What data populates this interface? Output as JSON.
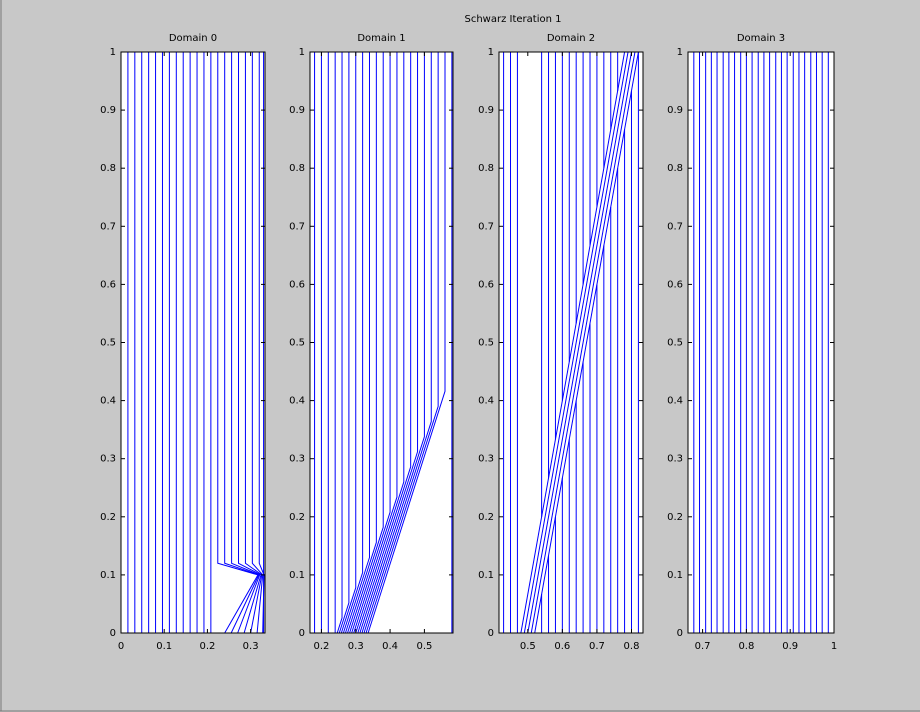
{
  "title": "Schwarz Iteration 1",
  "chart_data": [
    {
      "type": "line",
      "title": "Domain 0",
      "color": "#0000ff",
      "xlim": [
        0,
        0.3333
      ],
      "ylim": [
        0,
        1
      ],
      "xticks": [
        0,
        0.1,
        0.2,
        0.3
      ],
      "yticks": [
        0,
        0.1,
        0.2,
        0.3,
        0.4,
        0.5,
        0.6,
        0.7,
        0.8,
        0.9,
        1
      ],
      "series": [
        {
          "y": [
            0,
            1
          ],
          "values": [
            0.016,
            0.016
          ]
        },
        {
          "y": [
            0,
            1
          ],
          "values": [
            0.032,
            0.032
          ]
        },
        {
          "y": [
            0,
            1
          ],
          "values": [
            0.048,
            0.048
          ]
        },
        {
          "y": [
            0,
            1
          ],
          "values": [
            0.064,
            0.064
          ]
        },
        {
          "y": [
            0,
            1
          ],
          "values": [
            0.08,
            0.08
          ]
        },
        {
          "y": [
            0,
            1
          ],
          "values": [
            0.096,
            0.096
          ]
        },
        {
          "y": [
            0,
            1
          ],
          "values": [
            0.112,
            0.112
          ]
        },
        {
          "y": [
            0,
            1
          ],
          "values": [
            0.128,
            0.128
          ]
        },
        {
          "y": [
            0,
            1
          ],
          "values": [
            0.144,
            0.144
          ]
        },
        {
          "y": [
            0,
            1
          ],
          "values": [
            0.16,
            0.16
          ]
        },
        {
          "y": [
            0,
            1
          ],
          "values": [
            0.176,
            0.176
          ]
        },
        {
          "y": [
            0,
            1
          ],
          "values": [
            0.192,
            0.192
          ]
        },
        {
          "y": [
            0,
            1
          ],
          "values": [
            0.208,
            0.208
          ]
        },
        {
          "y": [
            0,
            0.1,
            0.12,
            1
          ],
          "values": [
            0.24,
            0.317,
            0.224,
            0.224
          ]
        },
        {
          "y": [
            0,
            0.1,
            0.12,
            1
          ],
          "values": [
            0.255,
            0.319,
            0.24,
            0.24
          ]
        },
        {
          "y": [
            0,
            0.1,
            0.12,
            1
          ],
          "values": [
            0.27,
            0.321,
            0.256,
            0.256
          ]
        },
        {
          "y": [
            0,
            0.1,
            0.12,
            1
          ],
          "values": [
            0.285,
            0.324,
            0.272,
            0.272
          ]
        },
        {
          "y": [
            0,
            0.1,
            0.12,
            1
          ],
          "values": [
            0.3,
            0.326,
            0.288,
            0.288
          ]
        },
        {
          "y": [
            0,
            0.1,
            0.12,
            1
          ],
          "values": [
            0.315,
            0.328,
            0.304,
            0.304
          ]
        },
        {
          "y": [
            0,
            0.1,
            0.12,
            1
          ],
          "values": [
            0.328,
            0.331,
            0.32,
            0.32
          ]
        },
        {
          "y": [
            0,
            1
          ],
          "values": [
            0.33,
            0.33
          ]
        }
      ]
    },
    {
      "type": "line",
      "title": "Domain 1",
      "color": "#0000ff",
      "xlim": [
        0.1667,
        0.5833
      ],
      "ylim": [
        0,
        1
      ],
      "xticks": [
        0.2,
        0.3,
        0.4,
        0.5
      ],
      "yticks": [
        0,
        0.1,
        0.2,
        0.3,
        0.4,
        0.5,
        0.6,
        0.7,
        0.8,
        0.9,
        1
      ],
      "series": [
        {
          "y": [
            0,
            1
          ],
          "values": [
            0.18,
            0.18
          ]
        },
        {
          "y": [
            0,
            1
          ],
          "values": [
            0.2,
            0.2
          ]
        },
        {
          "y": [
            0,
            1
          ],
          "values": [
            0.22,
            0.22
          ]
        },
        {
          "y": [
            0,
            1
          ],
          "values": [
            0.24,
            0.24
          ]
        },
        {
          "y": [
            0,
            0.026,
            1
          ],
          "values": [
            0.246,
            0.26,
            0.26
          ]
        },
        {
          "y": [
            0,
            0.052,
            1
          ],
          "values": [
            0.252,
            0.28,
            0.28
          ]
        },
        {
          "y": [
            0,
            0.078,
            1
          ],
          "values": [
            0.258,
            0.3,
            0.3
          ]
        },
        {
          "y": [
            0,
            0.104,
            1
          ],
          "values": [
            0.264,
            0.32,
            0.32
          ]
        },
        {
          "y": [
            0,
            0.13,
            1
          ],
          "values": [
            0.27,
            0.34,
            0.34
          ]
        },
        {
          "y": [
            0,
            0.156,
            1
          ],
          "values": [
            0.276,
            0.36,
            0.36
          ]
        },
        {
          "y": [
            0,
            0.182,
            1
          ],
          "values": [
            0.282,
            0.38,
            0.38
          ]
        },
        {
          "y": [
            0,
            0.208,
            1
          ],
          "values": [
            0.288,
            0.4,
            0.4
          ]
        },
        {
          "y": [
            0,
            0.234,
            1
          ],
          "values": [
            0.294,
            0.42,
            0.42
          ]
        },
        {
          "y": [
            0,
            0.26,
            1
          ],
          "values": [
            0.3,
            0.44,
            0.44
          ]
        },
        {
          "y": [
            0,
            0.286,
            1
          ],
          "values": [
            0.306,
            0.46,
            0.46
          ]
        },
        {
          "y": [
            0,
            0.312,
            1
          ],
          "values": [
            0.312,
            0.48,
            0.48
          ]
        },
        {
          "y": [
            0,
            0.338,
            1
          ],
          "values": [
            0.318,
            0.5,
            0.5
          ]
        },
        {
          "y": [
            0,
            0.364,
            1
          ],
          "values": [
            0.324,
            0.52,
            0.52
          ]
        },
        {
          "y": [
            0,
            0.39,
            1
          ],
          "values": [
            0.33,
            0.54,
            0.54
          ]
        },
        {
          "y": [
            0,
            0.416,
            1
          ],
          "values": [
            0.336,
            0.56,
            0.56
          ]
        },
        {
          "y": [
            0,
            1
          ],
          "values": [
            0.58,
            0.58
          ]
        }
      ]
    },
    {
      "type": "line",
      "title": "Domain 2",
      "color": "#0000ff",
      "xlim": [
        0.4167,
        0.8333
      ],
      "ylim": [
        0,
        1
      ],
      "xticks": [
        0.5,
        0.6,
        0.7,
        0.8
      ],
      "yticks": [
        0,
        0.1,
        0.2,
        0.3,
        0.4,
        0.5,
        0.6,
        0.7,
        0.8,
        0.9,
        1
      ],
      "series": [
        {
          "y": [
            0,
            1
          ],
          "values": [
            0.43,
            0.43
          ]
        },
        {
          "y": [
            0,
            1
          ],
          "values": [
            0.45,
            0.45
          ]
        },
        {
          "y": [
            0,
            1
          ],
          "values": [
            0.47,
            0.47
          ]
        },
        {
          "y": [
            0,
            1
          ],
          "values": [
            0.48,
            0.78
          ]
        },
        {
          "y": [
            0,
            1
          ],
          "values": [
            0.49,
            0.79
          ]
        },
        {
          "y": [
            0,
            1
          ],
          "values": [
            0.5,
            0.8
          ]
        },
        {
          "y": [
            0,
            1
          ],
          "values": [
            0.51,
            0.81
          ]
        },
        {
          "y": [
            0,
            1
          ],
          "values": [
            0.52,
            0.82
          ]
        },
        {
          "y": [
            0,
            0.067
          ],
          "values": [
            0.54,
            0.54
          ]
        },
        {
          "y": [
            0.2,
            1
          ],
          "values": [
            0.54,
            0.54
          ]
        },
        {
          "y": [
            0,
            0.133
          ],
          "values": [
            0.56,
            0.56
          ]
        },
        {
          "y": [
            0.267,
            1
          ],
          "values": [
            0.56,
            0.56
          ]
        },
        {
          "y": [
            0,
            0.2
          ],
          "values": [
            0.58,
            0.58
          ]
        },
        {
          "y": [
            0.333,
            1
          ],
          "values": [
            0.58,
            0.58
          ]
        },
        {
          "y": [
            0,
            0.267
          ],
          "values": [
            0.6,
            0.6
          ]
        },
        {
          "y": [
            0.4,
            1
          ],
          "values": [
            0.6,
            0.6
          ]
        },
        {
          "y": [
            0,
            0.333
          ],
          "values": [
            0.62,
            0.62
          ]
        },
        {
          "y": [
            0.467,
            1
          ],
          "values": [
            0.62,
            0.62
          ]
        },
        {
          "y": [
            0,
            0.4
          ],
          "values": [
            0.64,
            0.64
          ]
        },
        {
          "y": [
            0.533,
            1
          ],
          "values": [
            0.64,
            0.64
          ]
        },
        {
          "y": [
            0,
            0.467
          ],
          "values": [
            0.66,
            0.66
          ]
        },
        {
          "y": [
            0.6,
            1
          ],
          "values": [
            0.66,
            0.66
          ]
        },
        {
          "y": [
            0,
            0.533
          ],
          "values": [
            0.68,
            0.68
          ]
        },
        {
          "y": [
            0.667,
            1
          ],
          "values": [
            0.68,
            0.68
          ]
        },
        {
          "y": [
            0,
            0.6
          ],
          "values": [
            0.7,
            0.7
          ]
        },
        {
          "y": [
            0.733,
            1
          ],
          "values": [
            0.7,
            0.7
          ]
        },
        {
          "y": [
            0,
            0.667
          ],
          "values": [
            0.72,
            0.72
          ]
        },
        {
          "y": [
            0.8,
            1
          ],
          "values": [
            0.72,
            0.72
          ]
        },
        {
          "y": [
            0,
            0.733
          ],
          "values": [
            0.74,
            0.74
          ]
        },
        {
          "y": [
            0.867,
            1
          ],
          "values": [
            0.74,
            0.74
          ]
        },
        {
          "y": [
            0,
            0.8
          ],
          "values": [
            0.76,
            0.76
          ]
        },
        {
          "y": [
            0.933,
            1
          ],
          "values": [
            0.76,
            0.76
          ]
        },
        {
          "y": [
            0,
            0.867
          ],
          "values": [
            0.78,
            0.78
          ]
        },
        {
          "y": [
            0,
            0.933
          ],
          "values": [
            0.8,
            0.8
          ]
        },
        {
          "y": [
            0,
            1
          ],
          "values": [
            0.82,
            0.82
          ]
        }
      ]
    },
    {
      "type": "line",
      "title": "Domain 3",
      "color": "#0000ff",
      "xlim": [
        0.6667,
        1
      ],
      "ylim": [
        0,
        1
      ],
      "xticks": [
        0.7,
        0.8,
        0.9,
        1
      ],
      "yticks": [
        0,
        0.1,
        0.2,
        0.3,
        0.4,
        0.5,
        0.6,
        0.7,
        0.8,
        0.9,
        1
      ],
      "series": [
        {
          "y": [
            0,
            1
          ],
          "values": [
            0.68,
            0.68
          ]
        },
        {
          "y": [
            0,
            1
          ],
          "values": [
            0.693,
            0.693
          ]
        },
        {
          "y": [
            0,
            1
          ],
          "values": [
            0.707,
            0.707
          ]
        },
        {
          "y": [
            0,
            1
          ],
          "values": [
            0.72,
            0.72
          ]
        },
        {
          "y": [
            0,
            1
          ],
          "values": [
            0.733,
            0.733
          ]
        },
        {
          "y": [
            0,
            1
          ],
          "values": [
            0.747,
            0.747
          ]
        },
        {
          "y": [
            0,
            1
          ],
          "values": [
            0.76,
            0.76
          ]
        },
        {
          "y": [
            0,
            1
          ],
          "values": [
            0.773,
            0.773
          ]
        },
        {
          "y": [
            0,
            1
          ],
          "values": [
            0.787,
            0.787
          ]
        },
        {
          "y": [
            0,
            1
          ],
          "values": [
            0.8,
            0.8
          ]
        },
        {
          "y": [
            0,
            1
          ],
          "values": [
            0.813,
            0.813
          ]
        },
        {
          "y": [
            0,
            1
          ],
          "values": [
            0.827,
            0.827
          ]
        },
        {
          "y": [
            0,
            1
          ],
          "values": [
            0.84,
            0.84
          ]
        },
        {
          "y": [
            0,
            1
          ],
          "values": [
            0.853,
            0.853
          ]
        },
        {
          "y": [
            0,
            1
          ],
          "values": [
            0.867,
            0.867
          ]
        },
        {
          "y": [
            0,
            1
          ],
          "values": [
            0.88,
            0.88
          ]
        },
        {
          "y": [
            0,
            1
          ],
          "values": [
            0.893,
            0.893
          ]
        },
        {
          "y": [
            0,
            1
          ],
          "values": [
            0.907,
            0.907
          ]
        },
        {
          "y": [
            0,
            1
          ],
          "values": [
            0.92,
            0.92
          ]
        },
        {
          "y": [
            0,
            1
          ],
          "values": [
            0.933,
            0.933
          ]
        },
        {
          "y": [
            0,
            1
          ],
          "values": [
            0.947,
            0.947
          ]
        },
        {
          "y": [
            0,
            1
          ],
          "values": [
            0.96,
            0.96
          ]
        },
        {
          "y": [
            0,
            1
          ],
          "values": [
            0.973,
            0.973
          ]
        },
        {
          "y": [
            0,
            1
          ],
          "values": [
            0.987,
            0.987
          ]
        }
      ]
    }
  ]
}
